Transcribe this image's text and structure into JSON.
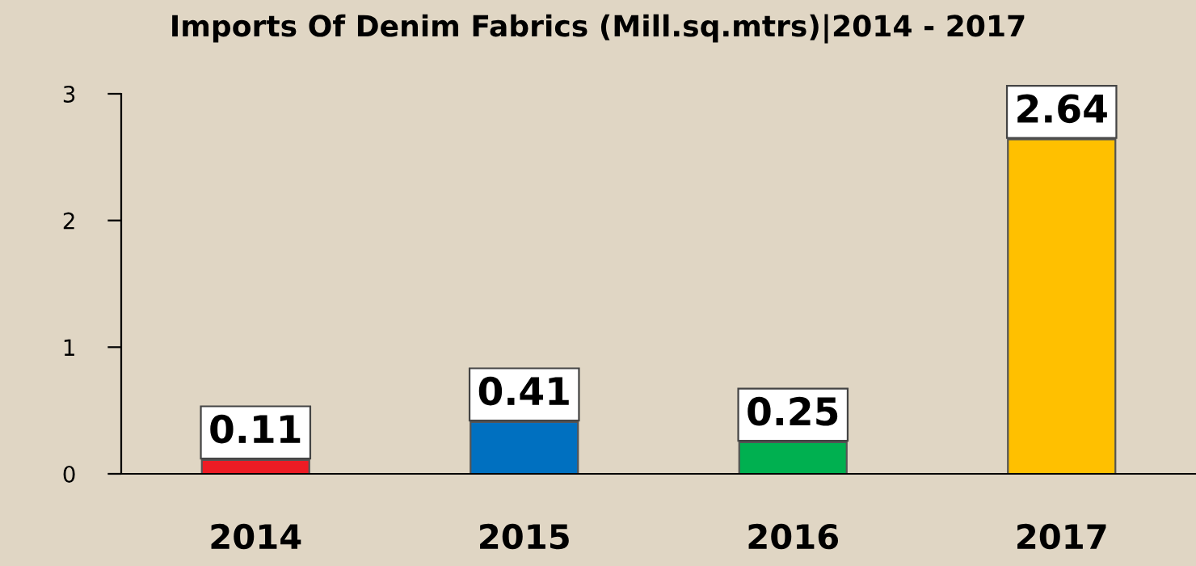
{
  "chart_data": {
    "type": "bar",
    "title": "Imports Of Denim Fabrics (Mill.sq.mtrs)|2014 - 2017",
    "categories": [
      "2014",
      "2015",
      "2016",
      "2017"
    ],
    "values": [
      0.11,
      0.41,
      0.25,
      2.64
    ],
    "colors": [
      "#ed1c24",
      "#0070c0",
      "#00b050",
      "#ffc000"
    ],
    "ylim": [
      0,
      3
    ],
    "yticks": [
      0,
      1,
      2,
      3
    ],
    "grid": false,
    "data_labels": true
  }
}
